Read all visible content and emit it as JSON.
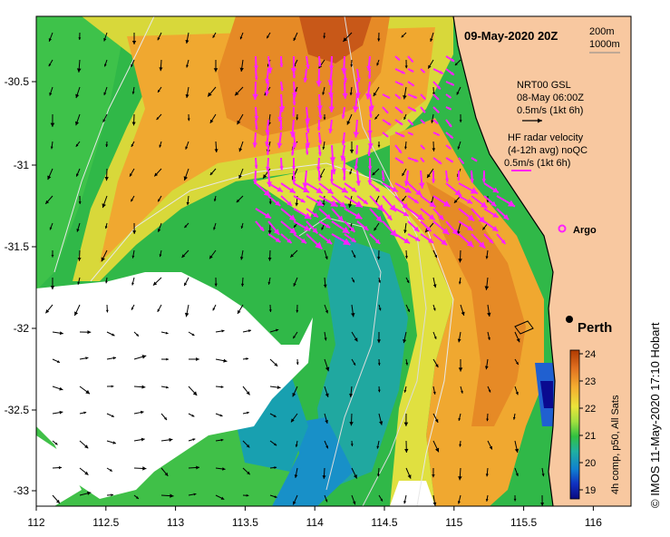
{
  "title": "09-May-2020 20Z",
  "scale_legend": {
    "short": "200m",
    "long": "1000m"
  },
  "nrt_label": {
    "line1": "NRT00 GSL",
    "line2": "08-May 06:00Z",
    "line3": "0.5m/s (1kt 6h)"
  },
  "hf_label": {
    "line1": "HF radar velocity",
    "line2": "(4-12h avg) noQC",
    "line3": "0.5m/s (1kt 6h)"
  },
  "argo_label": "Argo",
  "city_label": "Perth",
  "colorbar": {
    "ticks": [
      "24",
      "23",
      "22",
      "21",
      "20",
      "19"
    ],
    "label": "4h comp, p50, All Sats",
    "colors": [
      "#b04000",
      "#e07820",
      "#f5b030",
      "#e8e83a",
      "#a0e040",
      "#30c040",
      "#20b0a0",
      "#1080d0",
      "#1030c0",
      "#0a0a80"
    ]
  },
  "credit": "© IMOS 11-May-2020 17:10 Hobart",
  "x_ticks": [
    "112",
    "112.5",
    "113",
    "113.5",
    "114",
    "114.5",
    "115",
    "115.5",
    "116"
  ],
  "y_ticks": [
    "-30.5",
    "-31",
    "-31.5",
    "-32",
    "-32.5",
    "-33"
  ],
  "colors": {
    "land": "#f8c8a0",
    "vector_hf": "#ff20ff",
    "vector_model": "#000000"
  }
}
